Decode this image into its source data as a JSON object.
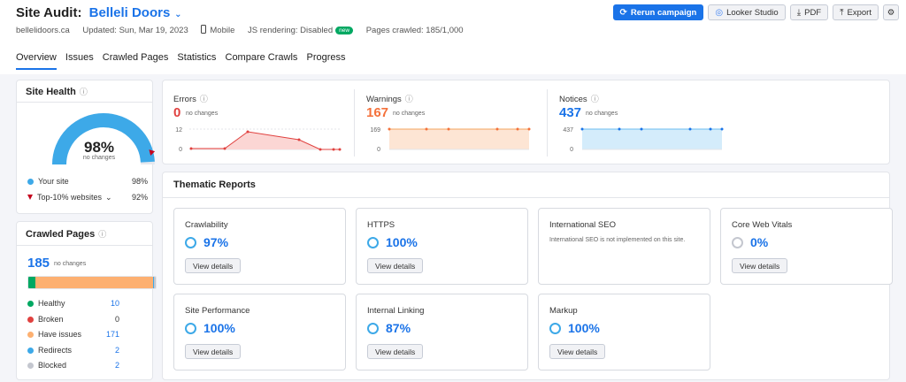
{
  "header": {
    "title": "Site Audit:",
    "project": "Belleli Doors",
    "domain": "bellelidoors.ca",
    "updated": "Updated: Sun, Mar 19, 2023",
    "device": "Mobile",
    "js": "JS rendering: Disabled",
    "new_badge": "new",
    "pages_crawled": "Pages crawled: 185/1,000",
    "buttons": {
      "rerun": "Rerun campaign",
      "looker": "Looker Studio",
      "pdf": "PDF",
      "export": "Export"
    },
    "tabs": [
      "Overview",
      "Issues",
      "Crawled Pages",
      "Statistics",
      "Compare Crawls",
      "Progress"
    ]
  },
  "site_health": {
    "title": "Site Health",
    "percent": "98%",
    "percent_value": 98,
    "sub": "no changes",
    "your_site_label": "Your site",
    "your_site_value": "98%",
    "top_label": "Top-10% websites",
    "top_value": "92%"
  },
  "crawled_pages": {
    "title": "Crawled Pages",
    "total": "185",
    "sub": "no changes",
    "rows": [
      {
        "label": "Healthy",
        "value": "10",
        "color": "#00a862"
      },
      {
        "label": "Broken",
        "value": "0",
        "color": "#e0413f"
      },
      {
        "label": "Have issues",
        "value": "171",
        "color": "#fdb071"
      },
      {
        "label": "Redirects",
        "value": "2",
        "color": "#3da9e8"
      },
      {
        "label": "Blocked",
        "value": "2",
        "color": "#c4c7cf"
      }
    ]
  },
  "summary": {
    "errors": {
      "label": "Errors",
      "value": "0",
      "sub": "no changes",
      "color": "#e0413f",
      "ymax": "12",
      "ymin": "0"
    },
    "warnings": {
      "label": "Warnings",
      "value": "167",
      "sub": "no changes",
      "color": "#f4713b",
      "ymax": "169",
      "ymin": "0"
    },
    "notices": {
      "label": "Notices",
      "value": "437",
      "sub": "no changes",
      "color": "#1a73e8",
      "ymax": "437",
      "ymin": "0"
    }
  },
  "thematic": {
    "title": "Thematic Reports",
    "view_details": "View details",
    "tiles": [
      {
        "name": "Crawlability",
        "value": "97%"
      },
      {
        "name": "HTTPS",
        "value": "100%"
      },
      {
        "name": "International SEO",
        "note": "International SEO is not implemented on this site."
      },
      {
        "name": "Core Web Vitals",
        "value": "0%"
      },
      {
        "name": "Site Performance",
        "value": "100%"
      },
      {
        "name": "Internal Linking",
        "value": "87%"
      },
      {
        "name": "Markup",
        "value": "100%"
      }
    ]
  }
}
